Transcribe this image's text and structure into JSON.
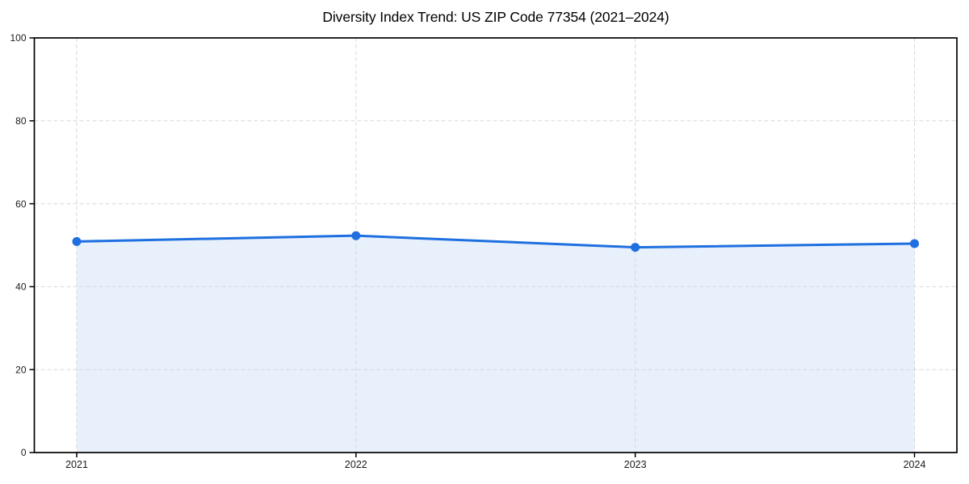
{
  "chart_data": {
    "type": "area",
    "title": "Diversity Index Trend: US ZIP Code 77354 (2021–2024)",
    "x": [
      "2021",
      "2022",
      "2023",
      "2024"
    ],
    "series": [
      {
        "name": "Diversity Index",
        "values": [
          50.9,
          52.3,
          49.5,
          50.4
        ]
      }
    ],
    "xlabel": "",
    "ylabel": "",
    "ylim": [
      0,
      100
    ],
    "yticks": [
      0,
      20,
      40,
      60,
      80,
      100
    ],
    "grid": "dashed",
    "legend": "none",
    "marker": "circle",
    "colors": {
      "line": "#1e6fe0",
      "marker": "#1e6fe0",
      "area_fill": "#1e6fe0",
      "area_opacity": 0.1,
      "grid": "#d9d9d9",
      "axis": "#000000",
      "tick_label": "#1a1a1a",
      "title": "#000000",
      "background": "#ffffff"
    }
  }
}
